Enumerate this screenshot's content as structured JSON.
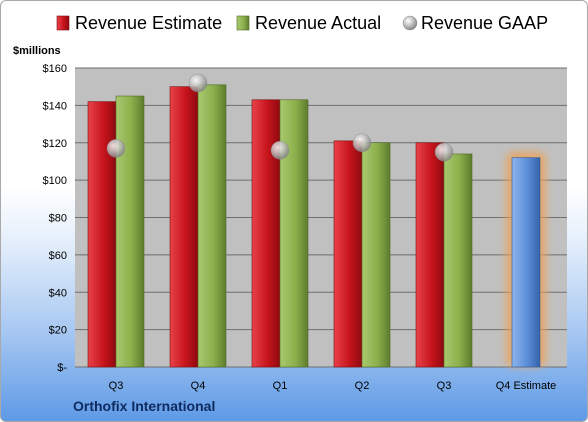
{
  "chart_data": {
    "type": "bar",
    "title": "",
    "company": "Orthofix International",
    "unit_label": "$millions",
    "categories": [
      "Q3",
      "Q4",
      "Q1",
      "Q2",
      "Q3",
      "Q4 Estimate"
    ],
    "series": [
      {
        "name": "Revenue Estimate",
        "values": [
          142,
          150,
          143,
          121,
          120,
          null
        ],
        "color": "#c8141c"
      },
      {
        "name": "Revenue Actual",
        "values": [
          145,
          151,
          143,
          120,
          114,
          null
        ],
        "color": "#8cb04c"
      },
      {
        "name": "Revenue GAAP",
        "values": [
          117,
          152,
          116,
          120,
          115,
          null
        ],
        "color": "#b8b8b8"
      },
      {
        "name": "",
        "values": [
          null,
          null,
          null,
          null,
          null,
          112
        ],
        "color": "#5b8ed8"
      }
    ],
    "ylim": [
      0,
      160
    ],
    "y_ticks": [
      0,
      20,
      40,
      60,
      80,
      100,
      120,
      140,
      160
    ],
    "y_tick_labels": [
      "$-",
      "$20",
      "$40",
      "$60",
      "$80",
      "$100",
      "$120",
      "$140",
      "$160"
    ],
    "plot_background": "#c0c0c0",
    "grid": true,
    "legend_position": "top",
    "highlight_color": "#f0a050"
  }
}
